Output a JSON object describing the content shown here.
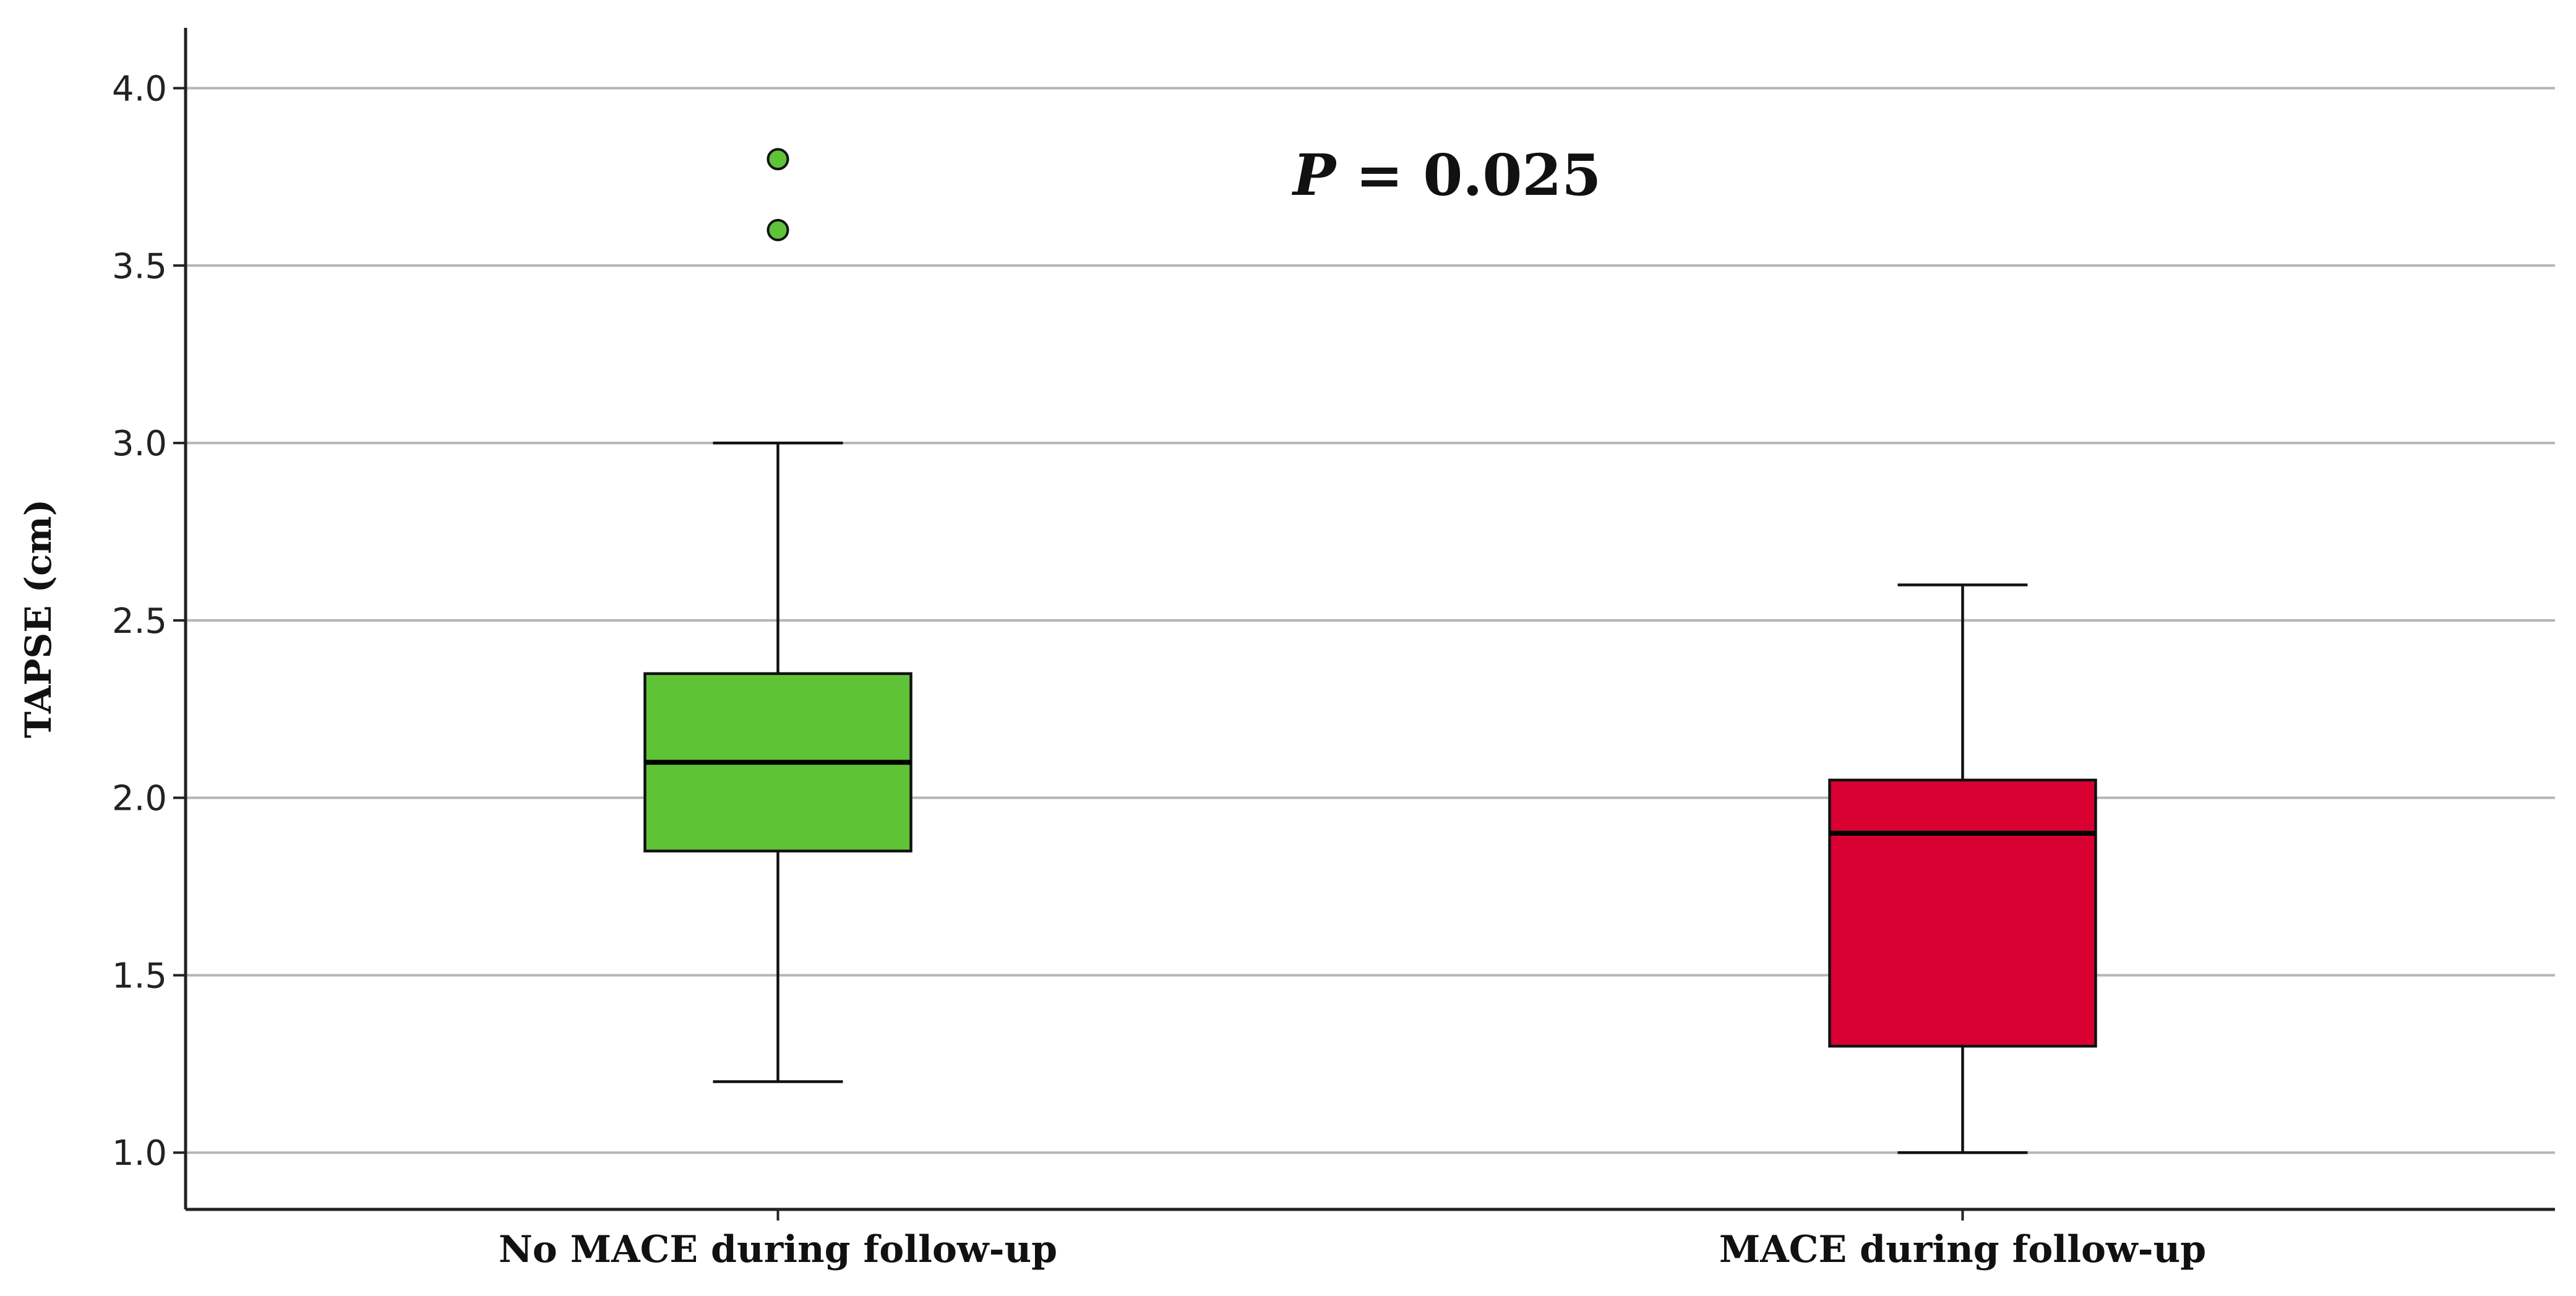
{
  "chart_data": {
    "type": "box",
    "title": "",
    "xlabel": "",
    "ylabel": "TAPSE (cm)",
    "ylim": [
      0.84,
      4.17
    ],
    "yticks": [
      "1.0",
      "1.5",
      "2.0",
      "2.5",
      "3.0",
      "3.5",
      "4.0"
    ],
    "grid": true,
    "categories": [
      "No MACE during follow-up",
      "MACE during follow-up"
    ],
    "boxes": [
      {
        "whisker_low": 1.2,
        "q1": 1.85,
        "median": 2.1,
        "q3": 2.35,
        "whisker_high": 3.0,
        "outliers": [
          3.6,
          3.8
        ],
        "color": "#5fc337"
      },
      {
        "whisker_low": 1.0,
        "q1": 1.3,
        "median": 1.9,
        "q3": 2.05,
        "whisker_high": 2.6,
        "outliers": [],
        "color": "#d90032"
      }
    ],
    "annotation": {
      "italic_part": "P",
      "rest": " = 0.025"
    }
  }
}
